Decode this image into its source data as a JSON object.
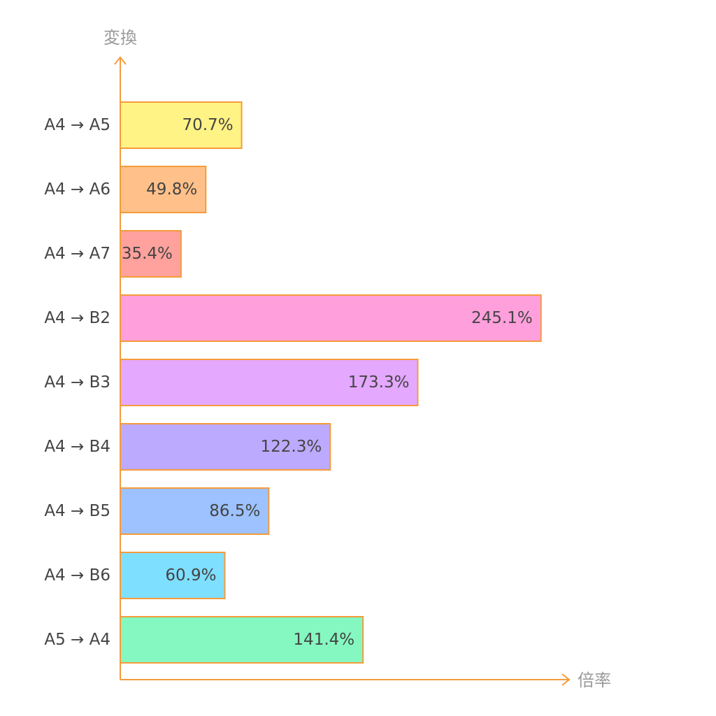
{
  "chart_data": {
    "type": "bar",
    "orientation": "horizontal",
    "ylabel": "変換",
    "xlabel": "倍率",
    "categories": [
      "A4 → A5",
      "A4 → A6",
      "A4 → A7",
      "A4 → B2",
      "A4 → B3",
      "A4 → B4",
      "A4 → B5",
      "A4 → B6",
      "A5 → A4"
    ],
    "values": [
      70.7,
      49.8,
      35.4,
      245.1,
      173.3,
      122.3,
      86.5,
      60.9,
      141.4
    ],
    "value_labels": [
      "70.7%",
      "49.8%",
      "35.4%",
      "245.1%",
      "173.3%",
      "122.3%",
      "86.5%",
      "60.9%",
      "141.4%"
    ],
    "colors": [
      "#fff385",
      "#ffc08a",
      "#ffa19c",
      "#ffa0dc",
      "#e4a8ff",
      "#bcaaff",
      "#9dc2ff",
      "#7fdfff",
      "#84f8c0"
    ],
    "border_color": "#f59b3b",
    "axis_color": "#f59b3b",
    "xlim": [
      0,
      260
    ],
    "grid": false,
    "legend": "none"
  }
}
